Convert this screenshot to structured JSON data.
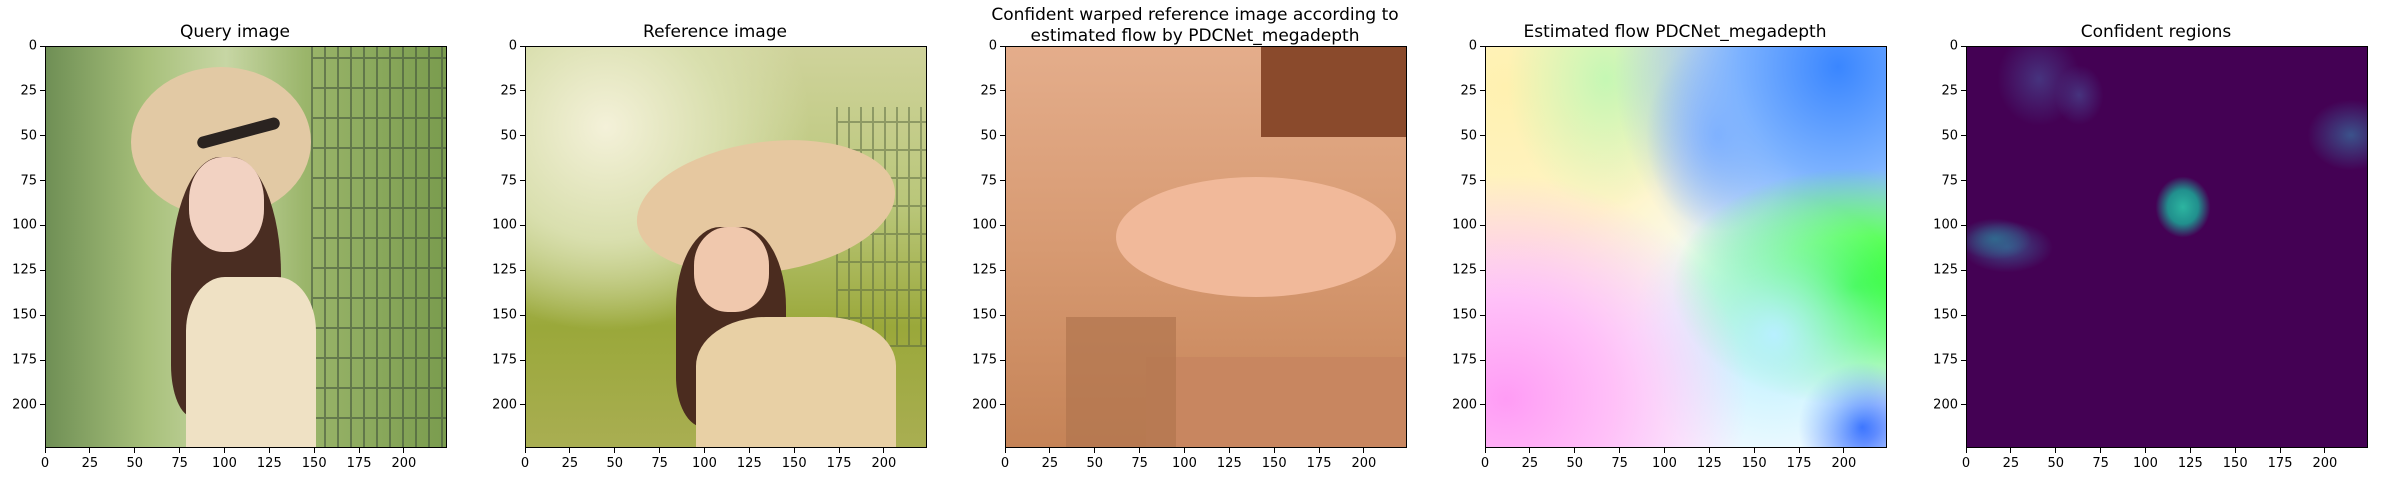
{
  "panels": [
    {
      "title": "Query image",
      "image": "photo-query",
      "colors": {
        "bg": "#8fb46a",
        "fence": "#3e4e3a",
        "hat": "#e2c9a4",
        "hair": "#4a2d22",
        "skin": "#f2d2c2",
        "dress": "#efe1c4"
      }
    },
    {
      "title": "Reference image",
      "image": "photo-reference",
      "colors": {
        "bg": "#b9c679",
        "hat": "#e6c8a0",
        "hair": "#4b2c1f",
        "skin": "#f0c8ad",
        "dress": "#e8d0a5"
      }
    },
    {
      "title": "Confident warped reference image according to\nestimated flow by PDCNet_megadepth",
      "image": "warped-image",
      "colors": {
        "base": "#dba07a",
        "dark": "#8a4a2c",
        "mid": "#b0754e",
        "light": "#f1b99a"
      }
    },
    {
      "title": "Estimated flow PDCNet_megadepth",
      "image": "flow-field",
      "colors": {
        "yellow": "#fff1b0",
        "cyan": "#b8f0ff",
        "blue": "#3a86ff",
        "green": "#16ff16",
        "magenta": "#ff9cf5",
        "white": "#f6fbff"
      }
    },
    {
      "title": "Confident regions",
      "image": "confidence-map",
      "colors": {
        "base": "#440154",
        "teal": "#2cb5a0",
        "dim": "#46337e"
      }
    }
  ],
  "axes": {
    "x_ticks": [
      "0",
      "25",
      "50",
      "75",
      "100",
      "125",
      "150",
      "175",
      "200"
    ],
    "y_ticks": [
      "0",
      "25",
      "50",
      "75",
      "100",
      "125",
      "150",
      "175",
      "200"
    ],
    "range": [
      0,
      224
    ]
  }
}
